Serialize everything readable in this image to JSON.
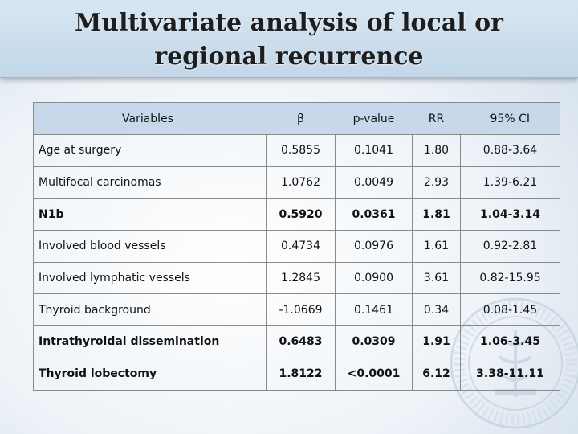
{
  "slide": {
    "title": "Multivariate analysis of local or regional recurrence"
  },
  "table": {
    "headers": [
      "Variables",
      "β",
      "p-value",
      "RR",
      "95% CI"
    ],
    "rows": [
      {
        "variable": "Age at surgery",
        "beta": "0.5855",
        "p_value": "0.1041",
        "rr": "1.80",
        "ci": "0.88-3.64",
        "bold": false
      },
      {
        "variable": "Multifocal carcinomas",
        "beta": "1.0762",
        "p_value": "0.0049",
        "rr": "2.93",
        "ci": "1.39-6.21",
        "bold": false
      },
      {
        "variable": "N1b",
        "beta": "0.5920",
        "p_value": "0.0361",
        "rr": "1.81",
        "ci": "1.04-3.14",
        "bold": true
      },
      {
        "variable": "Involved blood vessels",
        "beta": "0.4734",
        "p_value": "0.0976",
        "rr": "1.61",
        "ci": "0.92-2.81",
        "bold": false
      },
      {
        "variable": "Involved lymphatic vessels",
        "beta": "1.2845",
        "p_value": "0.0900",
        "rr": "3.61",
        "ci": "0.82-15.95",
        "bold": false
      },
      {
        "variable": "Thyroid background",
        "beta": "-1.0669",
        "p_value": "0.1461",
        "rr": "0.34",
        "ci": "0.08-1.45",
        "bold": false
      },
      {
        "variable": "Intrathyroidal dissemination",
        "beta": "0.6483",
        "p_value": "0.0309",
        "rr": "1.91",
        "ci": "1.06-3.45",
        "bold": true
      },
      {
        "variable": "Thyroid lobectomy",
        "beta": "1.8122",
        "p_value": "<0.0001",
        "rr": "6.12",
        "ci": "3.38-11.11",
        "bold": true
      }
    ]
  },
  "watermark": {
    "color": "#b9c9da",
    "icon": "institution-seal-icon"
  }
}
